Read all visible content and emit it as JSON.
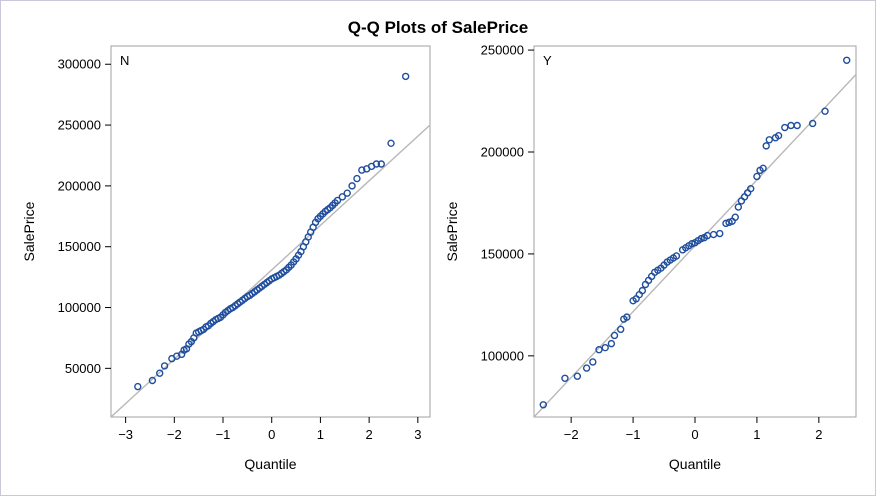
{
  "title": "Q-Q Plots of SalePrice",
  "colors": {
    "marker": "#1f4e9e",
    "refline": "#b8b8b8",
    "frame": "#a0a0a0"
  },
  "chart_data": [
    {
      "type": "scatter",
      "panel_label": "N",
      "xlabel": "Quantile",
      "ylabel": "SalePrice",
      "xlim": [
        -3.3,
        3.25
      ],
      "ylim": [
        10000,
        315000
      ],
      "xticks": [
        -3,
        -2,
        -1,
        0,
        1,
        2,
        3
      ],
      "yticks": [
        50000,
        100000,
        150000,
        200000,
        250000,
        300000
      ],
      "reference_line": {
        "x": [
          -3.3,
          3.25
        ],
        "y": [
          10000,
          250000
        ]
      },
      "points": [
        [
          -2.75,
          35000
        ],
        [
          -2.45,
          40000
        ],
        [
          -2.3,
          46000
        ],
        [
          -2.2,
          52000
        ],
        [
          -2.05,
          58000
        ],
        [
          -1.95,
          60000
        ],
        [
          -1.85,
          61500
        ],
        [
          -1.8,
          65000
        ],
        [
          -1.75,
          66000
        ],
        [
          -1.7,
          70000
        ],
        [
          -1.65,
          72000
        ],
        [
          -1.6,
          75000
        ],
        [
          -1.55,
          79000
        ],
        [
          -1.5,
          80000
        ],
        [
          -1.45,
          81000
        ],
        [
          -1.4,
          82000
        ],
        [
          -1.35,
          84000
        ],
        [
          -1.3,
          85000
        ],
        [
          -1.25,
          87000
        ],
        [
          -1.2,
          88500
        ],
        [
          -1.15,
          90000
        ],
        [
          -1.1,
          91000
        ],
        [
          -1.05,
          92000
        ],
        [
          -1.0,
          94000
        ],
        [
          -0.95,
          96000
        ],
        [
          -0.9,
          97500
        ],
        [
          -0.85,
          99000
        ],
        [
          -0.8,
          100000
        ],
        [
          -0.75,
          101500
        ],
        [
          -0.7,
          103000
        ],
        [
          -0.65,
          104500
        ],
        [
          -0.6,
          106000
        ],
        [
          -0.55,
          107500
        ],
        [
          -0.5,
          109000
        ],
        [
          -0.45,
          110000
        ],
        [
          -0.4,
          111500
        ],
        [
          -0.35,
          113000
        ],
        [
          -0.3,
          114500
        ],
        [
          -0.25,
          116000
        ],
        [
          -0.2,
          117500
        ],
        [
          -0.15,
          119000
        ],
        [
          -0.1,
          120500
        ],
        [
          -0.05,
          122000
        ],
        [
          0.0,
          123500
        ],
        [
          0.05,
          124500
        ],
        [
          0.1,
          125500
        ],
        [
          0.15,
          126500
        ],
        [
          0.2,
          128000
        ],
        [
          0.25,
          129500
        ],
        [
          0.3,
          131000
        ],
        [
          0.35,
          133000
        ],
        [
          0.4,
          135000
        ],
        [
          0.45,
          137500
        ],
        [
          0.5,
          140000
        ],
        [
          0.55,
          143000
        ],
        [
          0.6,
          146000
        ],
        [
          0.65,
          150000
        ],
        [
          0.7,
          154000
        ],
        [
          0.75,
          158000
        ],
        [
          0.8,
          162000
        ],
        [
          0.85,
          166000
        ],
        [
          0.9,
          170000
        ],
        [
          0.95,
          173000
        ],
        [
          1.0,
          175000
        ],
        [
          1.05,
          177000
        ],
        [
          1.1,
          179000
        ],
        [
          1.15,
          180500
        ],
        [
          1.2,
          182000
        ],
        [
          1.25,
          184000
        ],
        [
          1.3,
          186000
        ],
        [
          1.35,
          188000
        ],
        [
          1.45,
          191000
        ],
        [
          1.55,
          194000
        ],
        [
          1.65,
          200000
        ],
        [
          1.75,
          206000
        ],
        [
          1.85,
          213000
        ],
        [
          1.95,
          214000
        ],
        [
          2.05,
          216000
        ],
        [
          2.15,
          218000
        ],
        [
          2.25,
          218000
        ],
        [
          2.45,
          235000
        ],
        [
          2.75,
          290000
        ]
      ]
    },
    {
      "type": "scatter",
      "panel_label": "Y",
      "xlabel": "Quantile",
      "ylabel": "SalePrice",
      "xlim": [
        -2.6,
        2.6
      ],
      "ylim": [
        70000,
        252000
      ],
      "xticks": [
        -2,
        -1,
        0,
        1,
        2
      ],
      "yticks": [
        100000,
        150000,
        200000,
        250000
      ],
      "reference_line": {
        "x": [
          -2.6,
          2.6
        ],
        "y": [
          70000,
          238000
        ]
      },
      "points": [
        [
          -2.45,
          76000
        ],
        [
          -2.1,
          89000
        ],
        [
          -1.9,
          90000
        ],
        [
          -1.75,
          94000
        ],
        [
          -1.65,
          97000
        ],
        [
          -1.55,
          103000
        ],
        [
          -1.45,
          104000
        ],
        [
          -1.35,
          106000
        ],
        [
          -1.3,
          110000
        ],
        [
          -1.2,
          113000
        ],
        [
          -1.15,
          118000
        ],
        [
          -1.1,
          119000
        ],
        [
          -1.0,
          127000
        ],
        [
          -0.95,
          128000
        ],
        [
          -0.9,
          130000
        ],
        [
          -0.85,
          132000
        ],
        [
          -0.8,
          135000
        ],
        [
          -0.75,
          137000
        ],
        [
          -0.7,
          139000
        ],
        [
          -0.65,
          141000
        ],
        [
          -0.6,
          142000
        ],
        [
          -0.55,
          143000
        ],
        [
          -0.5,
          144500
        ],
        [
          -0.45,
          146000
        ],
        [
          -0.4,
          147000
        ],
        [
          -0.35,
          148000
        ],
        [
          -0.3,
          149000
        ],
        [
          -0.2,
          152000
        ],
        [
          -0.15,
          153000
        ],
        [
          -0.1,
          154000
        ],
        [
          -0.05,
          155000
        ],
        [
          0.0,
          155500
        ],
        [
          0.05,
          156500
        ],
        [
          0.1,
          157500
        ],
        [
          0.15,
          158000
        ],
        [
          0.2,
          159000
        ],
        [
          0.3,
          159500
        ],
        [
          0.4,
          160000
        ],
        [
          0.5,
          165000
        ],
        [
          0.55,
          165500
        ],
        [
          0.6,
          166000
        ],
        [
          0.65,
          168000
        ],
        [
          0.7,
          173000
        ],
        [
          0.75,
          176000
        ],
        [
          0.8,
          178000
        ],
        [
          0.85,
          180000
        ],
        [
          0.9,
          182000
        ],
        [
          1.0,
          188000
        ],
        [
          1.05,
          191000
        ],
        [
          1.1,
          192000
        ],
        [
          1.15,
          203000
        ],
        [
          1.2,
          206000
        ],
        [
          1.3,
          207000
        ],
        [
          1.35,
          208000
        ],
        [
          1.45,
          212000
        ],
        [
          1.55,
          213000
        ],
        [
          1.65,
          213000
        ],
        [
          1.9,
          214000
        ],
        [
          2.1,
          220000
        ],
        [
          2.45,
          245000
        ]
      ]
    }
  ]
}
